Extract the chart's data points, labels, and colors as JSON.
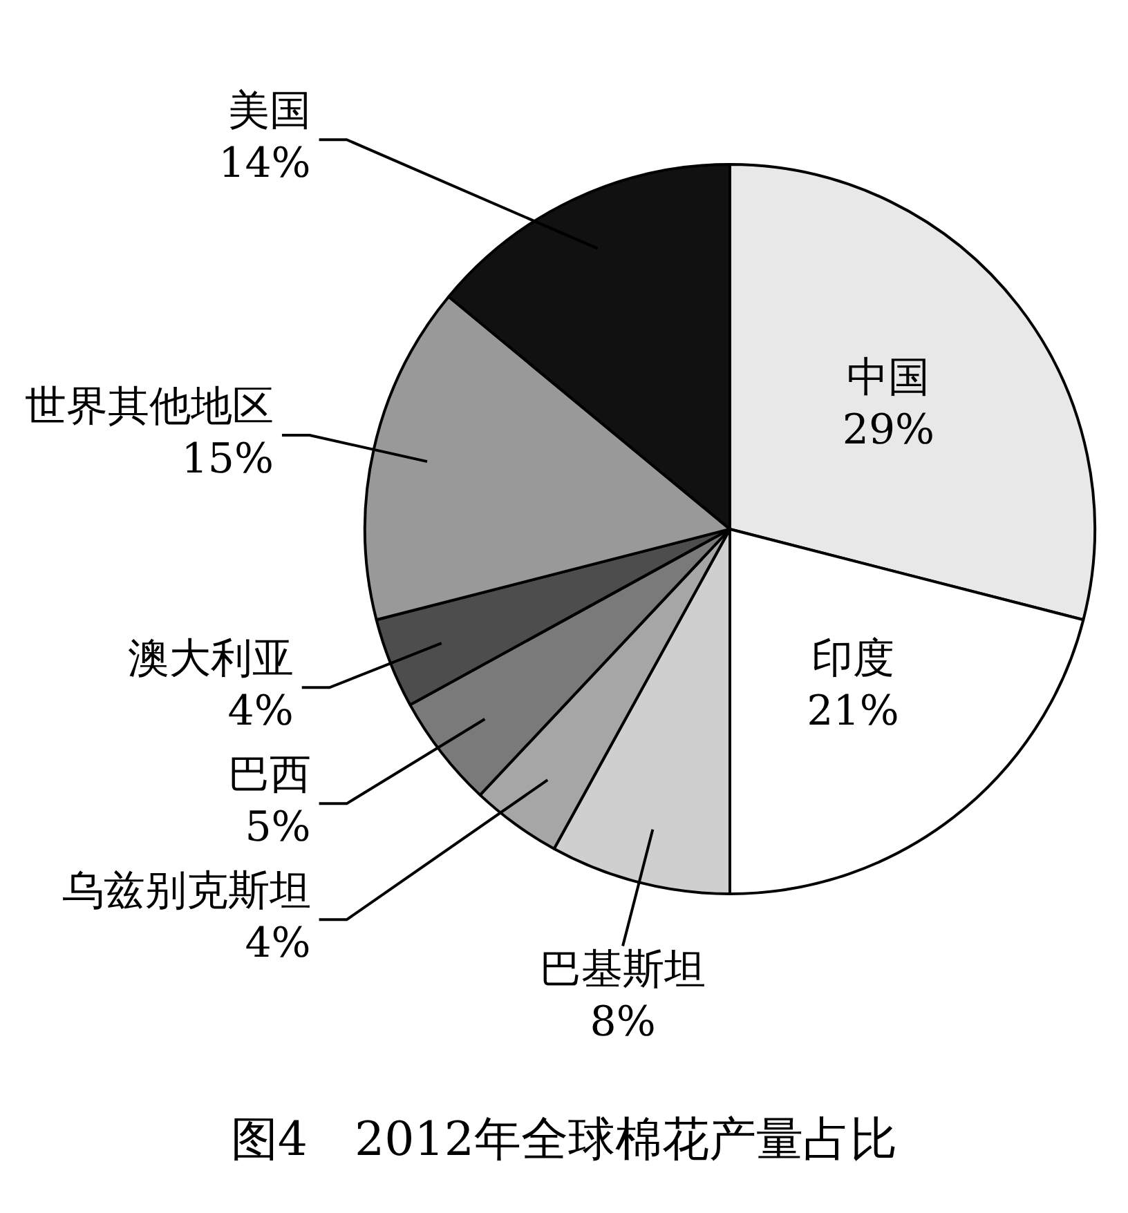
{
  "chart_data": {
    "type": "pie",
    "title": "图4　2012年全球棉花产量占比",
    "categories": [
      "中国",
      "印度",
      "巴基斯坦",
      "乌兹别克斯坦",
      "巴西",
      "澳大利亚",
      "世界其他地区",
      "美国"
    ],
    "values": [
      29,
      21,
      8,
      4,
      5,
      4,
      15,
      14
    ],
    "value_labels": [
      "29%",
      "21%",
      "8%",
      "4%",
      "5%",
      "4%",
      "15%",
      "14%"
    ],
    "colors": [
      "#e8e8e8",
      "#ffffff",
      "#cfcfcf",
      "#a6a6a6",
      "#7a7a7a",
      "#4d4d4d",
      "#999999",
      "#111111"
    ],
    "legend": false
  }
}
